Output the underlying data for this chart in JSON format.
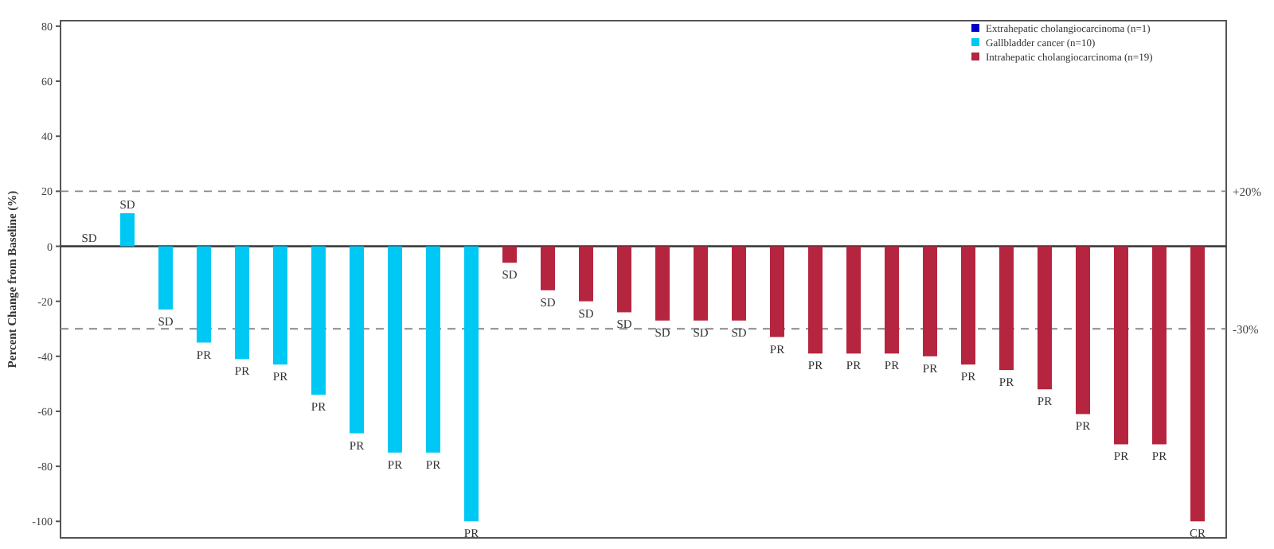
{
  "chart_data": {
    "type": "bar",
    "ylabel": "Percent Change from Baseline (%)",
    "categories": [
      null,
      null,
      null,
      null,
      null,
      null,
      null,
      null,
      null,
      null,
      null,
      null,
      null,
      null,
      null,
      null,
      null,
      null,
      null,
      null,
      null,
      null,
      null,
      null,
      null,
      null,
      null,
      null,
      null,
      null
    ],
    "series": [
      {
        "name": "Extrahepatic cholangiocarcinoma (n=1)",
        "color": "#0000cc",
        "values": [
          0,
          null,
          null,
          null,
          null,
          null,
          null,
          null,
          null,
          null,
          null,
          null,
          null,
          null,
          null,
          null,
          null,
          null,
          null,
          null,
          null,
          null,
          null,
          null,
          null,
          null,
          null,
          null,
          null,
          null
        ],
        "value_labels": [
          "SD",
          null,
          null,
          null,
          null,
          null,
          null,
          null,
          null,
          null,
          null,
          null,
          null,
          null,
          null,
          null,
          null,
          null,
          null,
          null,
          null,
          null,
          null,
          null,
          null,
          null,
          null,
          null,
          null,
          null
        ]
      },
      {
        "name": "Gallbladder cancer (n=10)",
        "color": "#00c8f5",
        "values": [
          null,
          12,
          -23,
          -35,
          -41,
          -43,
          -54,
          -68,
          -75,
          -75,
          -100,
          null,
          null,
          null,
          null,
          null,
          null,
          null,
          null,
          null,
          null,
          null,
          null,
          null,
          null,
          null,
          null,
          null,
          null,
          null
        ],
        "value_labels": [
          null,
          "SD",
          "SD",
          "PR",
          "PR",
          "PR",
          "PR",
          "PR",
          "PR",
          "PR",
          "PR",
          null,
          null,
          null,
          null,
          null,
          null,
          null,
          null,
          null,
          null,
          null,
          null,
          null,
          null,
          null,
          null,
          null,
          null,
          null
        ]
      },
      {
        "name": "Intrahepatic cholangiocarcinoma (n=19)",
        "color": "#b5253f",
        "values": [
          null,
          null,
          null,
          null,
          null,
          null,
          null,
          null,
          null,
          null,
          null,
          -6,
          -16,
          -20,
          -24,
          -27,
          -27,
          -27,
          -33,
          -39,
          -39,
          -39,
          -40,
          -43,
          -45,
          -52,
          -61,
          -72,
          -72,
          -100
        ],
        "value_labels": [
          null,
          null,
          null,
          null,
          null,
          null,
          null,
          null,
          null,
          null,
          null,
          "SD",
          "SD",
          "SD",
          "SD",
          "SD",
          "SD",
          "SD",
          "PR",
          "PR",
          "PR",
          "PR",
          "PR",
          "PR",
          "PR",
          "PR",
          "PR",
          "PR",
          "PR",
          "CR"
        ]
      }
    ],
    "ylim": [
      -106,
      82
    ],
    "yticks": [
      80,
      60,
      40,
      20,
      0,
      -20,
      -40,
      -60,
      -80,
      -100
    ],
    "tick_labels": "y",
    "grid": false,
    "legend": "top right",
    "ref_lines": [
      {
        "axis": "y",
        "value": 20,
        "label": "+20%",
        "line_style": "dashed"
      },
      {
        "axis": "y",
        "value": -30,
        "label": "-30%",
        "line_style": "dashed"
      },
      {
        "axis": "y",
        "value": 0,
        "label": null,
        "line_style": "solid"
      }
    ]
  }
}
